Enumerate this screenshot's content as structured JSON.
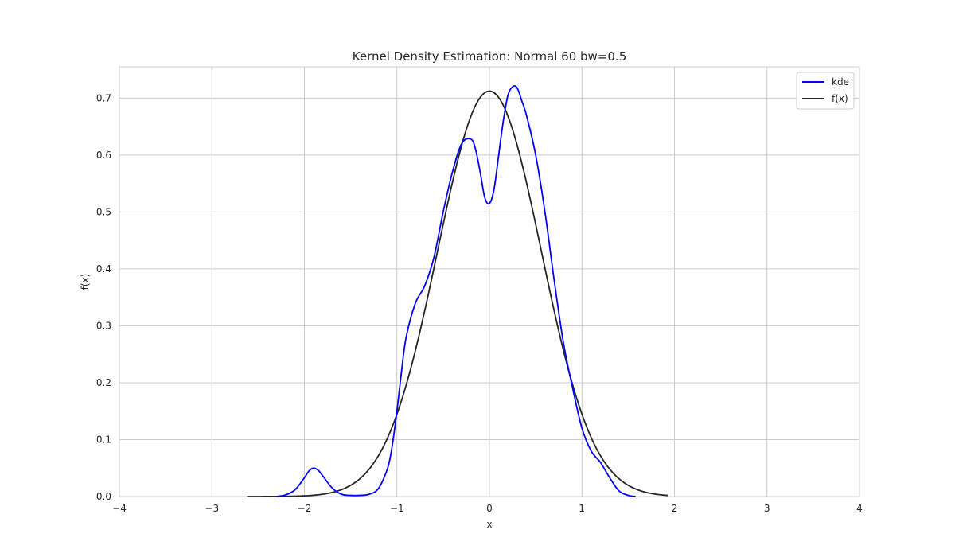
{
  "chart_data": {
    "type": "line",
    "title": "Kernel Density Estimation: Normal 60 bw=0.5",
    "xlabel": "x",
    "ylabel": "f(x)",
    "xlim": [
      -4,
      4
    ],
    "ylim": [
      0,
      0.755
    ],
    "x_ticks": [
      -4,
      -3,
      -2,
      -1,
      0,
      1,
      2,
      3,
      4
    ],
    "x_tick_labels": [
      "−4",
      "−3",
      "−2",
      "−1",
      "0",
      "1",
      "2",
      "3",
      "4"
    ],
    "y_ticks": [
      0.0,
      0.1,
      0.2,
      0.3,
      0.4,
      0.5,
      0.6,
      0.7
    ],
    "y_tick_labels": [
      "0.0",
      "0.1",
      "0.2",
      "0.3",
      "0.4",
      "0.5",
      "0.6",
      "0.7"
    ],
    "grid": true,
    "legend_position": "top-right",
    "series": [
      {
        "name": "kde",
        "color": "#0000ff",
        "x": [
          -2.3,
          -2.2,
          -2.1,
          -2.0,
          -1.95,
          -1.9,
          -1.85,
          -1.8,
          -1.7,
          -1.6,
          -1.5,
          -1.4,
          -1.3,
          -1.2,
          -1.1,
          -1.05,
          -1.0,
          -0.95,
          -0.9,
          -0.8,
          -0.7,
          -0.6,
          -0.5,
          -0.4,
          -0.3,
          -0.2,
          -0.15,
          -0.1,
          -0.05,
          0.0,
          0.05,
          0.1,
          0.15,
          0.2,
          0.25,
          0.3,
          0.35,
          0.4,
          0.5,
          0.6,
          0.7,
          0.8,
          0.9,
          1.0,
          1.1,
          1.2,
          1.3,
          1.4,
          1.5,
          1.58
        ],
        "y": [
          0.0,
          0.003,
          0.012,
          0.033,
          0.045,
          0.05,
          0.046,
          0.036,
          0.015,
          0.004,
          0.002,
          0.002,
          0.004,
          0.014,
          0.05,
          0.09,
          0.15,
          0.22,
          0.28,
          0.34,
          0.37,
          0.42,
          0.5,
          0.57,
          0.62,
          0.628,
          0.61,
          0.57,
          0.525,
          0.515,
          0.54,
          0.6,
          0.66,
          0.705,
          0.72,
          0.718,
          0.695,
          0.67,
          0.6,
          0.5,
          0.38,
          0.27,
          0.19,
          0.12,
          0.08,
          0.06,
          0.033,
          0.01,
          0.002,
          0.0
        ]
      },
      {
        "name": "f(x)",
        "color": "#262626",
        "distribution": {
          "mean": 0.0,
          "std": 0.56
        },
        "x_range": [
          -2.62,
          1.93
        ]
      }
    ]
  }
}
